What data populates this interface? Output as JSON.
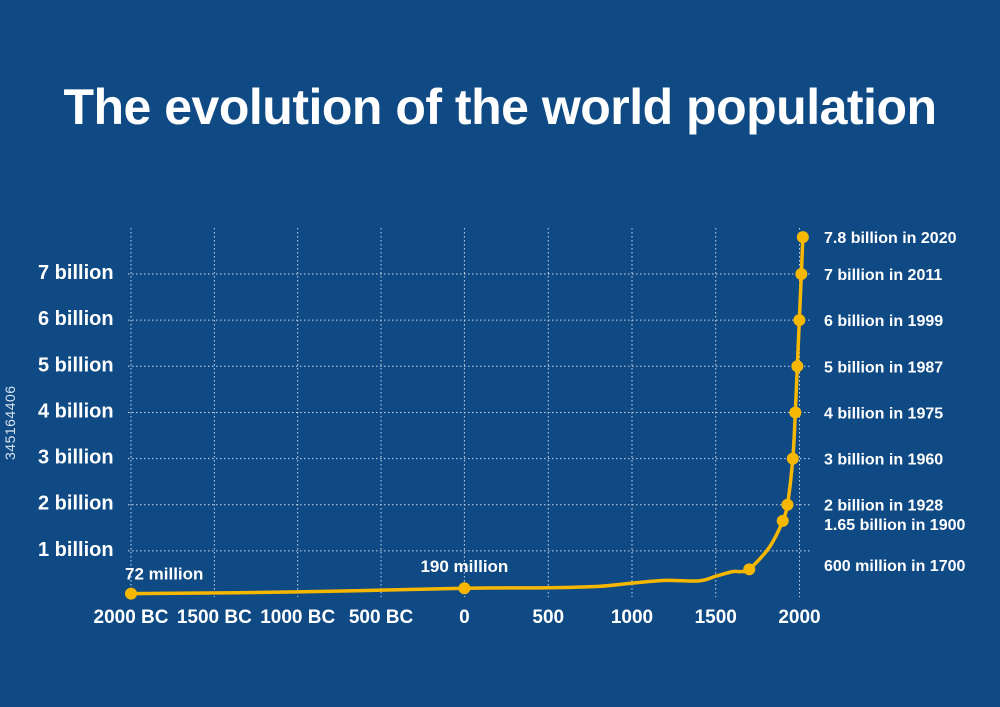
{
  "stock_id": "345164406",
  "chart_data": {
    "type": "line",
    "title": "The evolution of the world population",
    "xlabel": "",
    "ylabel": "",
    "xlim": [
      -2000,
      2020
    ],
    "ylim": [
      0,
      7.8
    ],
    "grid": true,
    "line_color": "#f5b700",
    "x_ticks": [
      {
        "value": -2000,
        "label": "2000 BC"
      },
      {
        "value": -1500,
        "label": "1500 BC"
      },
      {
        "value": -1000,
        "label": "1000 BC"
      },
      {
        "value": -500,
        "label": "500 BC"
      },
      {
        "value": 0,
        "label": "0"
      },
      {
        "value": 500,
        "label": "500"
      },
      {
        "value": 1000,
        "label": "1000"
      },
      {
        "value": 1500,
        "label": "1500"
      },
      {
        "value": 2000,
        "label": "2000"
      }
    ],
    "y_ticks": [
      {
        "value": 1,
        "label": "1 billion"
      },
      {
        "value": 2,
        "label": "2 billion"
      },
      {
        "value": 3,
        "label": "3 billion"
      },
      {
        "value": 4,
        "label": "4 billion"
      },
      {
        "value": 5,
        "label": "5 billion"
      },
      {
        "value": 6,
        "label": "6 billion"
      },
      {
        "value": 7,
        "label": "7 billion"
      }
    ],
    "curve": [
      {
        "x": -2000,
        "y": 0.072
      },
      {
        "x": -1000,
        "y": 0.11
      },
      {
        "x": 0,
        "y": 0.19
      },
      {
        "x": 500,
        "y": 0.2
      },
      {
        "x": 800,
        "y": 0.23
      },
      {
        "x": 1000,
        "y": 0.3
      },
      {
        "x": 1200,
        "y": 0.36
      },
      {
        "x": 1400,
        "y": 0.35
      },
      {
        "x": 1500,
        "y": 0.45
      },
      {
        "x": 1600,
        "y": 0.55
      },
      {
        "x": 1650,
        "y": 0.55
      },
      {
        "x": 1700,
        "y": 0.6
      },
      {
        "x": 1800,
        "y": 0.98
      },
      {
        "x": 1850,
        "y": 1.26
      },
      {
        "x": 1900,
        "y": 1.65
      },
      {
        "x": 1928,
        "y": 2
      },
      {
        "x": 1960,
        "y": 3
      },
      {
        "x": 1975,
        "y": 4
      },
      {
        "x": 1987,
        "y": 5
      },
      {
        "x": 1999,
        "y": 6
      },
      {
        "x": 2011,
        "y": 7
      },
      {
        "x": 2020,
        "y": 7.8
      }
    ],
    "markers": [
      {
        "x": -2000,
        "y": 0.072,
        "label": "72 million"
      },
      {
        "x": 0,
        "y": 0.19,
        "label": "190 million"
      },
      {
        "x": 1700,
        "y": 0.6,
        "label": "600 million in 1700"
      },
      {
        "x": 1900,
        "y": 1.65,
        "label": "1.65 billion in 1900"
      },
      {
        "x": 1928,
        "y": 2,
        "label": "2 billion in 1928"
      },
      {
        "x": 1960,
        "y": 3,
        "label": "3 billion in 1960"
      },
      {
        "x": 1975,
        "y": 4,
        "label": "4 billion in 1975"
      },
      {
        "x": 1987,
        "y": 5,
        "label": "5 billion in 1987"
      },
      {
        "x": 1999,
        "y": 6,
        "label": "6 billion in 1999"
      },
      {
        "x": 2011,
        "y": 7,
        "label": "7 billion in 2011"
      },
      {
        "x": 2020,
        "y": 7.8,
        "label": "7.8 billion in 2020"
      }
    ]
  }
}
